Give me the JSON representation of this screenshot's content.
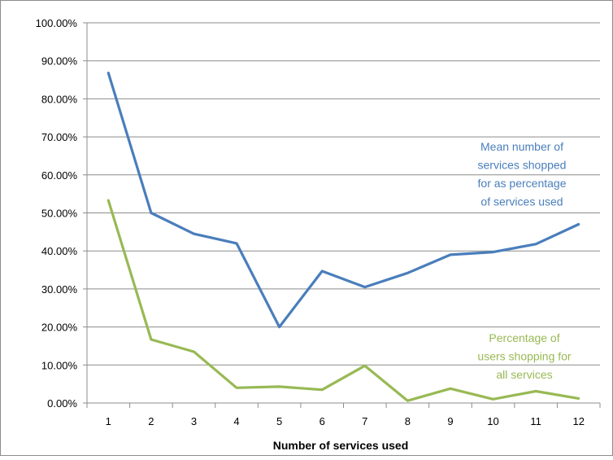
{
  "chart_data": {
    "type": "line",
    "xlabel": "Number of services used",
    "ylabel": "",
    "x": [
      1,
      2,
      3,
      4,
      5,
      6,
      7,
      8,
      9,
      10,
      11,
      12
    ],
    "ylim": [
      0,
      100
    ],
    "yticks": [
      "0.00%",
      "10.00%",
      "20.00%",
      "30.00%",
      "40.00%",
      "50.00%",
      "60.00%",
      "70.00%",
      "80.00%",
      "90.00%",
      "100.00%"
    ],
    "grid": true,
    "series": [
      {
        "name": "Mean number of services shopped for as percentage of services used",
        "label_lines": [
          "Mean number of",
          "services shopped",
          "for as percentage",
          "of services used"
        ],
        "color": "#4a7ebb",
        "values": [
          86.8,
          50.0,
          44.5,
          42.0,
          20.0,
          34.7,
          30.5,
          34.2,
          39.0,
          39.7,
          41.8,
          47.0
        ]
      },
      {
        "name": "Percentage of users shopping for all services",
        "label_lines": [
          "Percentage of",
          "users shopping for",
          "all services"
        ],
        "color": "#98b954",
        "values": [
          53.3,
          16.7,
          13.5,
          4.0,
          4.3,
          3.5,
          9.8,
          0.6,
          3.8,
          1.0,
          3.1,
          1.2
        ]
      }
    ]
  }
}
